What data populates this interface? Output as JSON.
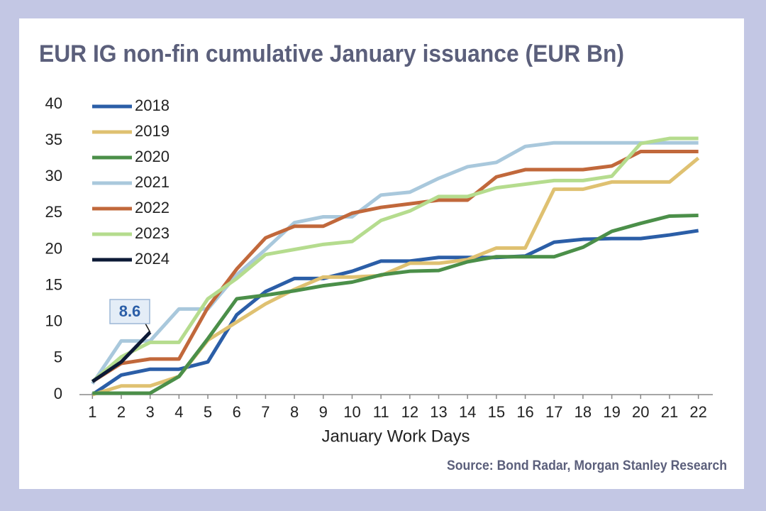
{
  "chart_data": {
    "type": "line",
    "title": "EUR IG non-fin cumulative January issuance (EUR Bn)",
    "x_label": "January Work Days",
    "source": "Source: Bond Radar, Morgan Stanley Research",
    "x": [
      1,
      2,
      3,
      4,
      5,
      6,
      7,
      8,
      9,
      10,
      11,
      12,
      13,
      14,
      15,
      16,
      17,
      18,
      19,
      20,
      21,
      22
    ],
    "xlim": [
      0.55,
      22.5
    ],
    "xticks": [
      1,
      2,
      3,
      4,
      5,
      6,
      7,
      8,
      9,
      10,
      11,
      12,
      13,
      14,
      15,
      16,
      17,
      18,
      19,
      20,
      21,
      22
    ],
    "ylim": [
      0,
      40
    ],
    "yticks": [
      0,
      5,
      10,
      15,
      20,
      25,
      30,
      35,
      40
    ],
    "grid": false,
    "legend": "upper left",
    "series": [
      {
        "name": "2018",
        "color": "#2b5ea7",
        "values": [
          0,
          2.7,
          3.5,
          3.5,
          4.5,
          11,
          14.2,
          16,
          16,
          17,
          18.4,
          18.4,
          18.9,
          18.9,
          18.9,
          19.1,
          21,
          21.4,
          21.5,
          21.5,
          22,
          22.6
        ]
      },
      {
        "name": "2019",
        "color": "#dfc171",
        "values": [
          0,
          1.2,
          1.2,
          2.5,
          7.5,
          10,
          12.5,
          14.5,
          16.2,
          16.2,
          16.4,
          18.1,
          18.1,
          18.6,
          20.2,
          20.2,
          28.3,
          28.3,
          29.3,
          29.3,
          29.3,
          32.6
        ]
      },
      {
        "name": "2020",
        "color": "#4b8f49",
        "values": [
          0.2,
          0.2,
          0.2,
          2.5,
          7.7,
          13.2,
          13.7,
          14.3,
          15,
          15.5,
          16.5,
          17,
          17.1,
          18.3,
          19,
          19,
          19,
          20.3,
          22.5,
          23.6,
          24.6,
          24.7
        ]
      },
      {
        "name": "2021",
        "color": "#a9c8dc",
        "values": [
          1.5,
          7.4,
          7.4,
          11.8,
          11.8,
          16.5,
          20,
          23.7,
          24.5,
          24.5,
          27.5,
          27.9,
          29.8,
          31.4,
          32,
          34.2,
          34.7,
          34.7,
          34.7,
          34.7,
          34.7,
          34.7
        ]
      },
      {
        "name": "2022",
        "color": "#c1683b",
        "values": [
          1.8,
          4.3,
          4.9,
          4.9,
          12,
          17.3,
          21.6,
          23.2,
          23.2,
          25,
          25.8,
          26.3,
          26.8,
          26.8,
          30,
          31,
          31,
          31,
          31.5,
          33.5,
          33.5,
          33.5
        ]
      },
      {
        "name": "2023",
        "color": "#b5dc8e",
        "values": [
          1.8,
          5.2,
          7.2,
          7.2,
          13.2,
          16,
          19.3,
          20,
          20.7,
          21.1,
          24,
          25.3,
          27.3,
          27.3,
          28.5,
          29,
          29.5,
          29.5,
          30.1,
          34.6,
          35.3,
          35.3
        ]
      },
      {
        "name": "2024",
        "color": "#0d1a36",
        "values": [
          1.8,
          4.5,
          8.6,
          null,
          null,
          null,
          null,
          null,
          null,
          null,
          null,
          null,
          null,
          null,
          null,
          null,
          null,
          null,
          null,
          null,
          null,
          null
        ]
      }
    ]
  }
}
